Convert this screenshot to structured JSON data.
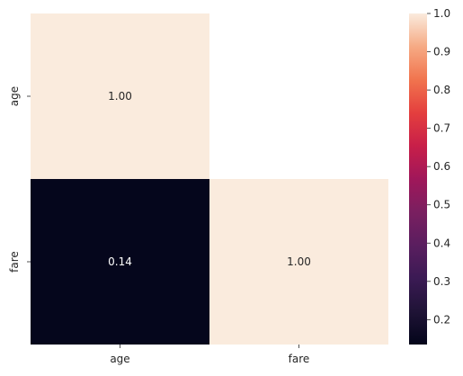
{
  "chart_data": {
    "type": "heatmap",
    "title": "",
    "xlabel": "",
    "ylabel": "",
    "x_categories": [
      "age",
      "fare"
    ],
    "y_categories": [
      "age",
      "fare"
    ],
    "cells": [
      {
        "row": 0,
        "col": 0,
        "value": 1.0,
        "label": "1.00"
      },
      {
        "row": 1,
        "col": 0,
        "value": 0.14,
        "label": "0.14"
      },
      {
        "row": 1,
        "col": 1,
        "value": 1.0,
        "label": "1.00"
      }
    ],
    "masked_cells": [
      {
        "row": 0,
        "col": 1
      }
    ],
    "colorbar": {
      "range": [
        0.135,
        1.0
      ],
      "ticks": [
        0.2,
        0.3,
        0.4,
        0.5,
        0.6,
        0.7,
        0.8,
        0.9,
        1.0
      ],
      "tick_labels": [
        "0.2",
        "0.3",
        "0.4",
        "0.5",
        "0.6",
        "0.7",
        "0.8",
        "0.9",
        "1.0"
      ],
      "colormap": "rocket"
    },
    "colors": {
      "low": "#03051a",
      "high": "#faebdd"
    }
  }
}
